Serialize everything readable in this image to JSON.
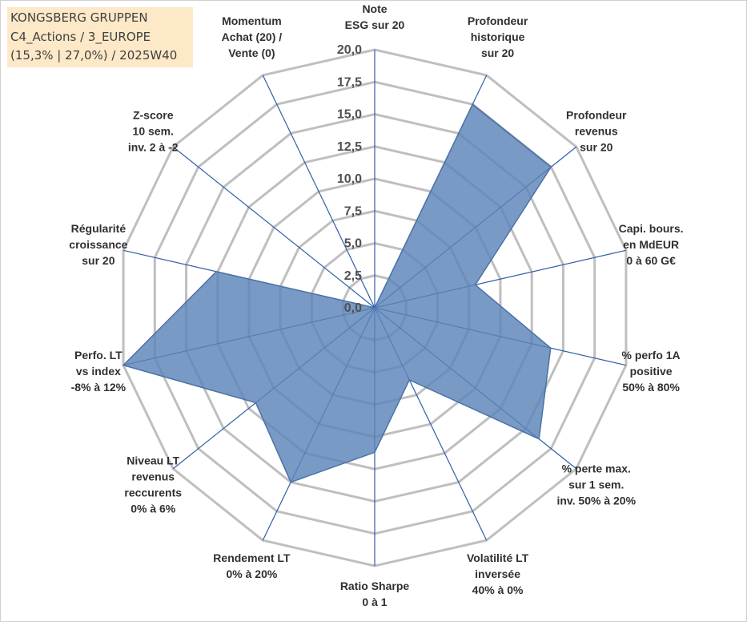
{
  "info_box": {
    "line1": "KONGSBERG GRUPPEN",
    "line2": "C4_Actions / 3_EUROPE",
    "line3": "(15,3% | 27,0%) / 2025W40"
  },
  "colors": {
    "fill": "#5b84b8",
    "stroke": "#4a72a8",
    "grid": "#bfbfbf",
    "spoke": "#2f5fa8"
  },
  "chart_data": {
    "type": "radar",
    "title": "",
    "rmin": 0,
    "rmax": 20,
    "tick_step": 2.5,
    "tick_labels": [
      "0,0",
      "2,5",
      "5,0",
      "7,5",
      "10,0",
      "12,5",
      "15,0",
      "17,5",
      "20,0"
    ],
    "axes": [
      [
        "Note",
        "ESG sur 20"
      ],
      [
        "Profondeur",
        "historique",
        "sur 20"
      ],
      [
        "Profondeur",
        "revenus",
        "sur 20"
      ],
      [
        "Capi. bours.",
        "en MdEUR",
        "0 à 60 G€"
      ],
      [
        "% perfo 1A",
        "positive",
        "50% à 80%"
      ],
      [
        "% perte max.",
        "sur 1 sem.",
        "inv. 50% à 20%"
      ],
      [
        "Volatilité LT",
        "inversée",
        "40% à 0%"
      ],
      [
        "Ratio Sharpe",
        "0 à 1"
      ],
      [
        "Rendement LT",
        "0% à 20%"
      ],
      [
        "Niveau LT",
        "revenus",
        "reccurents",
        "0% à 6%"
      ],
      [
        "Perfo. LT",
        "vs index",
        "-8% à 12%"
      ],
      [
        "Régularité",
        "croissance",
        "sur 20"
      ],
      [
        "Z-score",
        "10 sem.",
        "inv. 2 à -2"
      ],
      [
        "Momentum",
        "Achat (20) /",
        "Vente (0)"
      ]
    ],
    "series": [
      {
        "values": [
          0,
          17.5,
          17.5,
          8.0,
          14.0,
          16.3,
          6.2,
          11.2,
          15.0,
          11.8,
          20.0,
          12.6,
          0,
          0
        ]
      }
    ],
    "grid": true,
    "legend": "none"
  }
}
